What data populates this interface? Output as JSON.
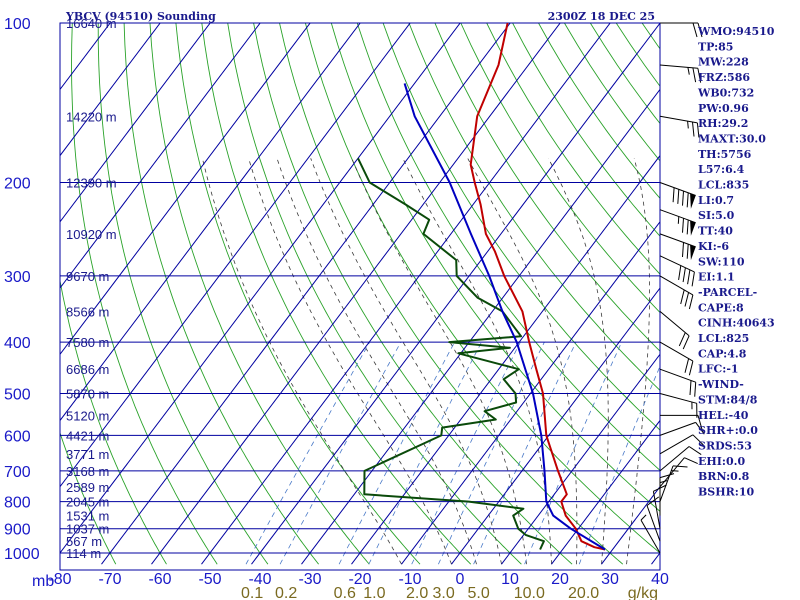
{
  "chart_data": {
    "type": "line",
    "title": "YBCV (94510) Sounding",
    "valid_time": "2300Z 18 DEC 25",
    "pressure_axis": {
      "unit": "mb",
      "ticks": [
        100,
        200,
        300,
        400,
        500,
        600,
        700,
        800,
        900,
        1000
      ],
      "range": [
        1000,
        100
      ],
      "scale": "log"
    },
    "temperature_axis": {
      "unit": "C",
      "ticks": [
        -80,
        -70,
        -60,
        -50,
        -40,
        -30,
        -20,
        -10,
        0,
        10,
        20,
        30,
        40
      ],
      "tick_labels": [
        "-80",
        "-70",
        "-60",
        "-50",
        "-40",
        "-30",
        "-20",
        "-10",
        "0",
        "10",
        "20",
        "30",
        "40"
      ],
      "range": [
        -80,
        40
      ],
      "skew": "skewed"
    },
    "mixing_ratio_axis": {
      "unit": "g/kg",
      "labels": [
        "0.1",
        "0.2",
        "0.6",
        "1.0",
        "2.0",
        "3.0",
        "5.0",
        "10.0",
        "20.0"
      ],
      "values": [
        0.1,
        0.2,
        0.6,
        1.0,
        2.0,
        3.0,
        5.0,
        10.0,
        20.0
      ],
      "unit_label": "g/kg"
    },
    "height_labels": [
      {
        "p": 100,
        "label": "16640 m"
      },
      {
        "p": 150,
        "label": "14220 m"
      },
      {
        "p": 200,
        "label": "12390 m"
      },
      {
        "p": 250,
        "label": "10920 m"
      },
      {
        "p": 300,
        "label": "9670 m"
      },
      {
        "p": 350,
        "label": "8566 m"
      },
      {
        "p": 400,
        "label": "7580 m"
      },
      {
        "p": 450,
        "label": "6686 m"
      },
      {
        "p": 500,
        "label": "5870 m"
      },
      {
        "p": 550,
        "label": "5120 m"
      },
      {
        "p": 600,
        "label": "4421 m"
      },
      {
        "p": 650,
        "label": "3771 m"
      },
      {
        "p": 700,
        "label": "3168 m"
      },
      {
        "p": 750,
        "label": "2589 m"
      },
      {
        "p": 800,
        "label": "2045 m"
      },
      {
        "p": 850,
        "label": "1531 m"
      },
      {
        "p": 900,
        "label": "1037 m"
      },
      {
        "p": 950,
        "label": "567 m"
      },
      {
        "p": 1000,
        "label": "114 m"
      }
    ],
    "series": [
      {
        "name": "Temperature",
        "color": "#c00000",
        "points": [
          {
            "p": 985,
            "t": 28.5
          },
          {
            "p": 975,
            "t": 26.0
          },
          {
            "p": 950,
            "t": 22.5
          },
          {
            "p": 900,
            "t": 19.5
          },
          {
            "p": 850,
            "t": 15.5
          },
          {
            "p": 800,
            "t": 12.5
          },
          {
            "p": 775,
            "t": 12.5
          },
          {
            "p": 700,
            "t": 7.2
          },
          {
            "p": 600,
            "t": -0.5
          },
          {
            "p": 500,
            "t": -7.5
          },
          {
            "p": 450,
            "t": -12.5
          },
          {
            "p": 400,
            "t": -18.0
          },
          {
            "p": 350,
            "t": -24.0
          },
          {
            "p": 300,
            "t": -33.0
          },
          {
            "p": 270,
            "t": -38.5
          },
          {
            "p": 250,
            "t": -43.0
          },
          {
            "p": 220,
            "t": -48.5
          },
          {
            "p": 200,
            "t": -53.0
          },
          {
            "p": 185,
            "t": -56.5
          },
          {
            "p": 150,
            "t": -62.5
          },
          {
            "p": 120,
            "t": -66.0
          },
          {
            "p": 100,
            "t": -70.5
          }
        ]
      },
      {
        "name": "Dewpoint",
        "color": "#0a4a0a",
        "points": [
          {
            "p": 985,
            "t": 15.5
          },
          {
            "p": 950,
            "t": 15.0
          },
          {
            "p": 925,
            "t": 10.5
          },
          {
            "p": 900,
            "t": 8.0
          },
          {
            "p": 850,
            "t": 5.0
          },
          {
            "p": 825,
            "t": 6.0
          },
          {
            "p": 800,
            "t": -6.0
          },
          {
            "p": 775,
            "t": -28.0
          },
          {
            "p": 700,
            "t": -31.5
          },
          {
            "p": 600,
            "t": -21.5
          },
          {
            "p": 580,
            "t": -22.5
          },
          {
            "p": 560,
            "t": -13.0
          },
          {
            "p": 540,
            "t": -16.5
          },
          {
            "p": 520,
            "t": -11.5
          },
          {
            "p": 500,
            "t": -13.0
          },
          {
            "p": 470,
            "t": -17.5
          },
          {
            "p": 450,
            "t": -16.0
          },
          {
            "p": 420,
            "t": -30.5
          },
          {
            "p": 410,
            "t": -21.0
          },
          {
            "p": 400,
            "t": -34.0
          },
          {
            "p": 390,
            "t": -20.5
          },
          {
            "p": 350,
            "t": -28.0
          },
          {
            "p": 330,
            "t": -35.0
          },
          {
            "p": 300,
            "t": -42.5
          },
          {
            "p": 280,
            "t": -45.0
          },
          {
            "p": 250,
            "t": -55.5
          },
          {
            "p": 235,
            "t": -56.5
          },
          {
            "p": 220,
            "t": -63.5
          },
          {
            "p": 200,
            "t": -74.0
          },
          {
            "p": 180,
            "t": -80.0
          }
        ]
      },
      {
        "name": "Parcel",
        "color": "#0000c0",
        "points": [
          {
            "p": 985,
            "t": 28.5
          },
          {
            "p": 900,
            "t": 18.5
          },
          {
            "p": 850,
            "t": 13.0
          },
          {
            "p": 800,
            "t": 9.5
          },
          {
            "p": 700,
            "t": 4.5
          },
          {
            "p": 600,
            "t": -1.5
          },
          {
            "p": 500,
            "t": -9.5
          },
          {
            "p": 400,
            "t": -20.5
          },
          {
            "p": 350,
            "t": -28.0
          },
          {
            "p": 300,
            "t": -36.0
          },
          {
            "p": 250,
            "t": -46.0
          },
          {
            "p": 200,
            "t": -58.0
          },
          {
            "p": 150,
            "t": -75.0
          },
          {
            "p": 130,
            "t": -82.0
          }
        ]
      }
    ],
    "wind_barbs": [
      {
        "p": 100,
        "dir": 270,
        "spd": 20
      },
      {
        "p": 120,
        "dir": 275,
        "spd": 25
      },
      {
        "p": 150,
        "dir": 280,
        "spd": 25
      },
      {
        "p": 200,
        "dir": 290,
        "spd": 90
      },
      {
        "p": 225,
        "dir": 290,
        "spd": 75
      },
      {
        "p": 250,
        "dir": 290,
        "spd": 70
      },
      {
        "p": 275,
        "dir": 295,
        "spd": 40
      },
      {
        "p": 300,
        "dir": 300,
        "spd": 30
      },
      {
        "p": 350,
        "dir": 310,
        "spd": 20
      },
      {
        "p": 400,
        "dir": 300,
        "spd": 20
      },
      {
        "p": 450,
        "dir": 290,
        "spd": 20
      },
      {
        "p": 500,
        "dir": 285,
        "spd": 15
      },
      {
        "p": 550,
        "dir": 270,
        "spd": 10
      },
      {
        "p": 600,
        "dir": 250,
        "spd": 10
      },
      {
        "p": 650,
        "dir": 240,
        "spd": 10
      },
      {
        "p": 700,
        "dir": 230,
        "spd": 10
      },
      {
        "p": 750,
        "dir": 220,
        "spd": 10
      },
      {
        "p": 800,
        "dir": 200,
        "spd": 15
      },
      {
        "p": 850,
        "dir": 180,
        "spd": 15
      },
      {
        "p": 900,
        "dir": 170,
        "spd": 10
      },
      {
        "p": 950,
        "dir": 160,
        "spd": 10
      },
      {
        "p": 1000,
        "dir": 150,
        "spd": 5
      }
    ],
    "indices": [
      "WMO:94510",
      "TP:85",
      "MW:228",
      "FRZ:586",
      "WB0:732",
      "PW:0.96",
      "RH:29.2",
      "MAXT:30.0",
      "TH:5756",
      "L57:6.4",
      "LCL:835",
      "LI:0.7",
      "SI:5.0",
      "TT:40",
      "KI:-6",
      "SW:110",
      "EI:1.1",
      "-PARCEL-",
      "CAPE:8",
      "CINH:40643",
      "LCL:825",
      "CAP:4.8",
      "LFC:-1",
      "-WIND-",
      "STM:84/8",
      "HEL:-40",
      "SHR+:0.0",
      "SRDS:53",
      "EHI:0.0",
      "BRN:0.8",
      "BSHR:10"
    ],
    "colors": {
      "isobar": "#0000a0",
      "isotherm": "#0000a0",
      "dry_adiabat": "#2aa22a",
      "moist_adiabat": "#3a3a3a",
      "mixing_ratio": "#4a7ac8",
      "label": "#1a1ac8",
      "mixing_label": "#7a6a20"
    }
  }
}
